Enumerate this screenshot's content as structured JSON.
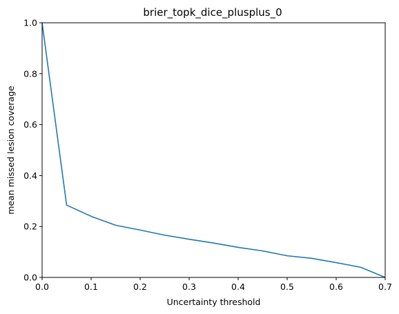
{
  "chart_data": {
    "type": "line",
    "title": "brier_topk_dice_plusplus_0",
    "xlabel": "Uncertainty threshold",
    "ylabel": "mean missed lesion coverage",
    "xlim": [
      0,
      0.7
    ],
    "ylim": [
      0,
      1.0
    ],
    "x_ticks": [
      "0.0",
      "0.1",
      "0.2",
      "0.3",
      "0.4",
      "0.5",
      "0.6",
      "0.7"
    ],
    "y_ticks": [
      "0.0",
      "0.2",
      "0.4",
      "0.6",
      "0.8",
      "1.0"
    ],
    "grid": false,
    "series": [
      {
        "color": "#1f77b4",
        "x": [
          0.0,
          0.05,
          0.1,
          0.15,
          0.2,
          0.25,
          0.3,
          0.35,
          0.4,
          0.45,
          0.5,
          0.55,
          0.6,
          0.65,
          0.7
        ],
        "y": [
          1.0,
          0.284,
          0.24,
          0.205,
          0.186,
          0.166,
          0.15,
          0.135,
          0.118,
          0.104,
          0.085,
          0.075,
          0.058,
          0.04,
          0.0
        ]
      }
    ]
  }
}
